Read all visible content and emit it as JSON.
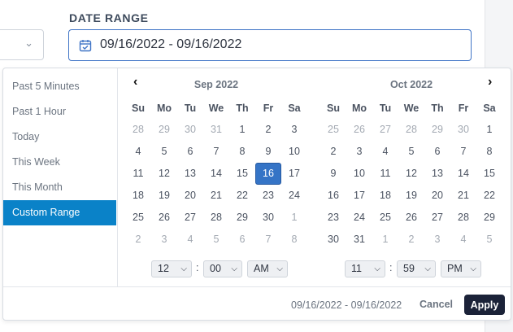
{
  "header": {
    "label": "DATE RANGE"
  },
  "date_input": {
    "value": "09/16/2022 - 09/16/2022",
    "icon": "calendar-check-icon"
  },
  "ranges": [
    {
      "label": "Past 5 Minutes",
      "active": false
    },
    {
      "label": "Past 1 Hour",
      "active": false
    },
    {
      "label": "Today",
      "active": false
    },
    {
      "label": "This Week",
      "active": false
    },
    {
      "label": "This Month",
      "active": false
    },
    {
      "label": "Custom Range",
      "active": true
    }
  ],
  "weekdays": [
    "Su",
    "Mo",
    "Tu",
    "We",
    "Th",
    "Fr",
    "Sa"
  ],
  "calendars": [
    {
      "title": "Sep 2022",
      "nav": "‹",
      "weeks": [
        [
          "28",
          "29",
          "30",
          "31",
          "1",
          "2",
          "3"
        ],
        [
          "4",
          "5",
          "6",
          "7",
          "8",
          "9",
          "10"
        ],
        [
          "11",
          "12",
          "13",
          "14",
          "15",
          "16",
          "17"
        ],
        [
          "18",
          "19",
          "20",
          "21",
          "22",
          "23",
          "24"
        ],
        [
          "25",
          "26",
          "27",
          "28",
          "29",
          "30",
          "1"
        ],
        [
          "2",
          "3",
          "4",
          "5",
          "6",
          "7",
          "8"
        ]
      ],
      "in_month": [
        [
          false,
          false,
          false,
          false,
          true,
          true,
          true
        ],
        [
          true,
          true,
          true,
          true,
          true,
          true,
          true
        ],
        [
          true,
          true,
          true,
          true,
          true,
          true,
          true
        ],
        [
          true,
          true,
          true,
          true,
          true,
          true,
          true
        ],
        [
          true,
          true,
          true,
          true,
          true,
          true,
          false
        ],
        [
          false,
          false,
          false,
          false,
          false,
          false,
          false
        ]
      ],
      "selected": "16",
      "time": {
        "hour": "12",
        "minute": "00",
        "ampm": "AM"
      }
    },
    {
      "title": "Oct 2022",
      "nav": "›",
      "weeks": [
        [
          "25",
          "26",
          "27",
          "28",
          "29",
          "30",
          "1"
        ],
        [
          "2",
          "3",
          "4",
          "5",
          "6",
          "7",
          "8"
        ],
        [
          "9",
          "10",
          "11",
          "12",
          "13",
          "14",
          "15"
        ],
        [
          "16",
          "17",
          "18",
          "19",
          "20",
          "21",
          "22"
        ],
        [
          "23",
          "24",
          "25",
          "26",
          "27",
          "28",
          "29"
        ],
        [
          "30",
          "31",
          "1",
          "2",
          "3",
          "4",
          "5"
        ]
      ],
      "in_month": [
        [
          false,
          false,
          false,
          false,
          false,
          false,
          true
        ],
        [
          true,
          true,
          true,
          true,
          true,
          true,
          true
        ],
        [
          true,
          true,
          true,
          true,
          true,
          true,
          true
        ],
        [
          true,
          true,
          true,
          true,
          true,
          true,
          true
        ],
        [
          true,
          true,
          true,
          true,
          true,
          true,
          true
        ],
        [
          true,
          true,
          false,
          false,
          false,
          false,
          false
        ]
      ],
      "selected": null,
      "time": {
        "hour": "11",
        "minute": "59",
        "ampm": "PM"
      }
    }
  ],
  "footer": {
    "summary": "09/16/2022 - 09/16/2022",
    "cancel_label": "Cancel",
    "apply_label": "Apply"
  },
  "colors": {
    "accent": "#0a82c8",
    "selected_day": "#3574c6",
    "apply_bg": "#1b2238",
    "input_border": "#3f74c6"
  }
}
